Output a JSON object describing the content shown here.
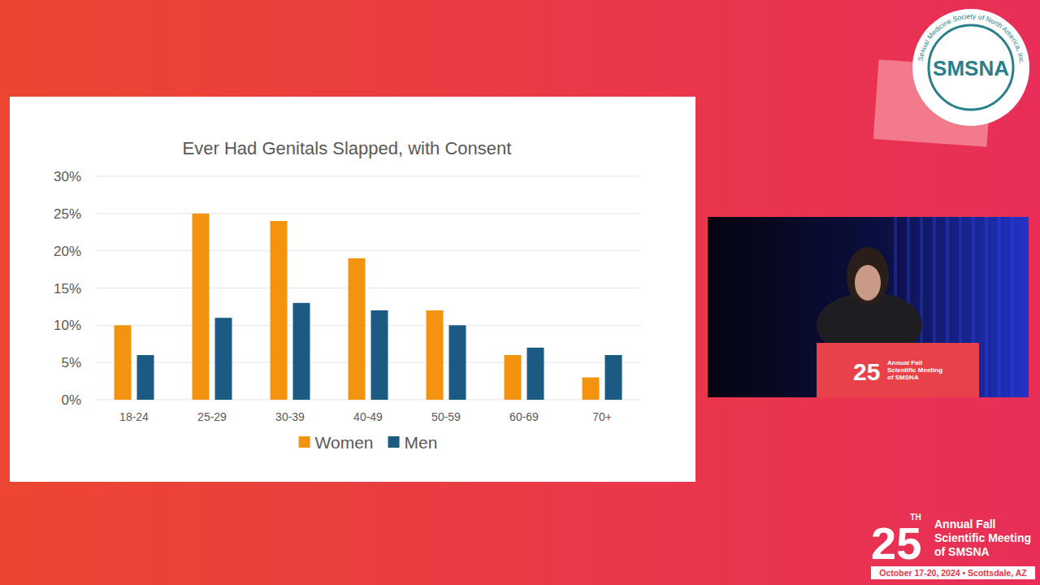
{
  "chart_data": {
    "type": "bar",
    "title": "Ever Had Genitals Slapped, with Consent",
    "categories": [
      "18-24",
      "25-29",
      "30-39",
      "40-49",
      "50-59",
      "60-69",
      "70+"
    ],
    "series": [
      {
        "name": "Women",
        "color": "#f39410",
        "values": [
          10,
          25,
          24,
          19,
          12,
          6,
          3
        ]
      },
      {
        "name": "Men",
        "color": "#1b5a82",
        "values": [
          6,
          11,
          13,
          12,
          10,
          7,
          6
        ]
      }
    ],
    "ylim": [
      0,
      30
    ],
    "yticks": [
      {
        "value": 0,
        "label": "0%"
      },
      {
        "value": 5,
        "label": "5%"
      },
      {
        "value": 10,
        "label": "10%"
      },
      {
        "value": 15,
        "label": "15%"
      },
      {
        "value": 20,
        "label": "20%"
      },
      {
        "value": 25,
        "label": "25%"
      },
      {
        "value": 30,
        "label": "30%"
      }
    ],
    "grid": true,
    "legend": "bottom"
  },
  "slide": {
    "logo_text": "SMSNA",
    "logo_ring": "Sexual Medicine Society of North America, Inc.",
    "footer_number": "25",
    "footer_suffix": "TH",
    "footer_lines": [
      "Annual Fall",
      "Scientific Meeting",
      "of SMSNA"
    ],
    "footer_date": "October 17-20, 2024 • Scottsdale, AZ"
  }
}
